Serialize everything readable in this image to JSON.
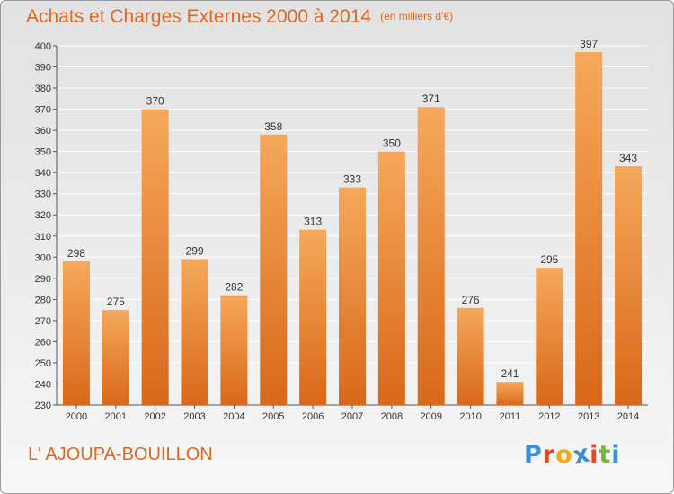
{
  "title": "Achats et Charges Externes 2000 à 2014",
  "subtitle": "(en milliers d'€)",
  "commune": "L' AJOUPA-BOUILLON",
  "logo": {
    "text": "Proxiti",
    "letters": [
      "P",
      "r",
      "o",
      "x",
      "i",
      "t",
      "i"
    ],
    "letter_colors": [
      "#3a8fd6",
      "#e8452c",
      "#f0a81c",
      "#3a8fd6",
      "#e8452c",
      "#77b43c",
      "#3a8fd6"
    ]
  },
  "colors": {
    "accent": "#e0671f",
    "bar_top": "#f6a85a",
    "bar_bottom": "#d9681a",
    "grid": "#ffffff",
    "text": "#333333"
  },
  "chart_data": {
    "type": "bar",
    "categories": [
      "2000",
      "2001",
      "2002",
      "2003",
      "2004",
      "2005",
      "2006",
      "2007",
      "2008",
      "2009",
      "2010",
      "2011",
      "2012",
      "2013",
      "2014"
    ],
    "values": [
      298,
      275,
      370,
      299,
      282,
      358,
      313,
      333,
      350,
      371,
      276,
      241,
      295,
      397,
      343
    ],
    "title": "Achats et Charges Externes 2000 à 2014",
    "xlabel": "",
    "ylabel": "",
    "ylim": [
      230,
      400
    ],
    "yticks": [
      230,
      240,
      250,
      260,
      270,
      280,
      290,
      300,
      310,
      320,
      330,
      340,
      350,
      360,
      370,
      380,
      390,
      400
    ],
    "grid": true,
    "data_labels": true
  }
}
